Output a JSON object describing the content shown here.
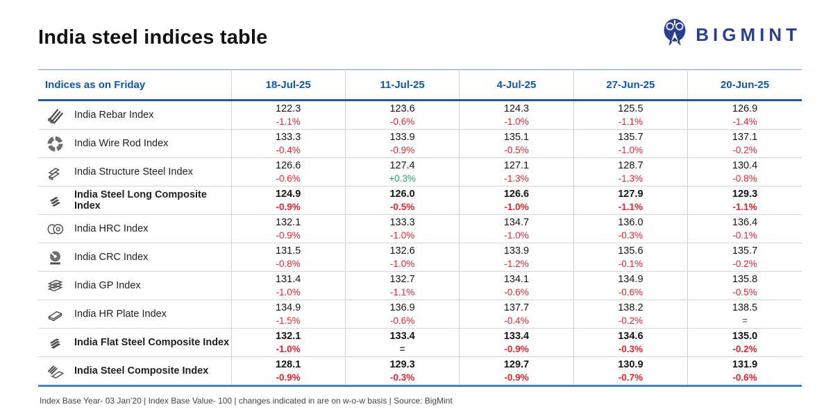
{
  "header": {
    "title": "India steel indices table",
    "logo_text": "BIGMINT"
  },
  "chart_data": {
    "type": "table",
    "title": "India steel indices table",
    "row_header": "Indices as on Friday",
    "columns": [
      "18-Jul-25",
      "11-Jul-25",
      "4-Jul-25",
      "27-Jun-25",
      "20-Jun-25"
    ],
    "rows": [
      {
        "icon": "rebar-icon",
        "label": "India Rebar Index",
        "bold": false,
        "cells": [
          {
            "value": "122.3",
            "change": "-1.1%",
            "direction": "down"
          },
          {
            "value": "123.6",
            "change": "-0.6%",
            "direction": "down"
          },
          {
            "value": "124.3",
            "change": "-1.0%",
            "direction": "down"
          },
          {
            "value": "125.5",
            "change": "-1.1%",
            "direction": "down"
          },
          {
            "value": "126.9",
            "change": "-1.4%",
            "direction": "down"
          }
        ]
      },
      {
        "icon": "wire-rod-icon",
        "label": "India Wire Rod Index",
        "bold": false,
        "cells": [
          {
            "value": "133.3",
            "change": "-0.4%",
            "direction": "down"
          },
          {
            "value": "133.9",
            "change": "-0.9%",
            "direction": "down"
          },
          {
            "value": "135.1",
            "change": "-0.5%",
            "direction": "down"
          },
          {
            "value": "135.7",
            "change": "-1.0%",
            "direction": "down"
          },
          {
            "value": "137.1",
            "change": "-0.2%",
            "direction": "down"
          }
        ]
      },
      {
        "icon": "structure-steel-icon",
        "label": "India Structure Steel Index",
        "bold": false,
        "cells": [
          {
            "value": "126.6",
            "change": "-0.6%",
            "direction": "down"
          },
          {
            "value": "127.4",
            "change": "+0.3%",
            "direction": "up"
          },
          {
            "value": "127.1",
            "change": "-1.3%",
            "direction": "down"
          },
          {
            "value": "128.7",
            "change": "-1.3%",
            "direction": "down"
          },
          {
            "value": "130.4",
            "change": "-0.8%",
            "direction": "down"
          }
        ]
      },
      {
        "icon": "long-composite-icon",
        "label": "India Steel Long Composite Index",
        "bold": true,
        "cells": [
          {
            "value": "124.9",
            "change": "-0.9%",
            "direction": "down"
          },
          {
            "value": "126.0",
            "change": "-0.5%",
            "direction": "down"
          },
          {
            "value": "126.6",
            "change": "-1.0%",
            "direction": "down"
          },
          {
            "value": "127.9",
            "change": "-1.1%",
            "direction": "down"
          },
          {
            "value": "129.3",
            "change": "-1.1%",
            "direction": "down"
          }
        ]
      },
      {
        "icon": "hrc-icon",
        "label": "India HRC Index",
        "bold": false,
        "cells": [
          {
            "value": "132.1",
            "change": "-0.9%",
            "direction": "down"
          },
          {
            "value": "133.3",
            "change": "-1.0%",
            "direction": "down"
          },
          {
            "value": "134.7",
            "change": "-1.0%",
            "direction": "down"
          },
          {
            "value": "136.0",
            "change": "-0.3%",
            "direction": "down"
          },
          {
            "value": "136.4",
            "change": "-0.1%",
            "direction": "down"
          }
        ]
      },
      {
        "icon": "crc-icon",
        "label": "India CRC Index",
        "bold": false,
        "cells": [
          {
            "value": "131.5",
            "change": "-0.8%",
            "direction": "down"
          },
          {
            "value": "132.6",
            "change": "-1.0%",
            "direction": "down"
          },
          {
            "value": "133.9",
            "change": "-1.2%",
            "direction": "down"
          },
          {
            "value": "135.6",
            "change": "-0.1%",
            "direction": "down"
          },
          {
            "value": "135.7",
            "change": "-0.2%",
            "direction": "down"
          }
        ]
      },
      {
        "icon": "gp-icon",
        "label": "India GP Index",
        "bold": false,
        "cells": [
          {
            "value": "131.4",
            "change": "-1.0%",
            "direction": "down"
          },
          {
            "value": "132.7",
            "change": "-1.1%",
            "direction": "down"
          },
          {
            "value": "134.1",
            "change": "-0.6%",
            "direction": "down"
          },
          {
            "value": "134.9",
            "change": "-0.6%",
            "direction": "down"
          },
          {
            "value": "135.8",
            "change": "-0.5%",
            "direction": "down"
          }
        ]
      },
      {
        "icon": "hr-plate-icon",
        "label": "India HR Plate Index",
        "bold": false,
        "cells": [
          {
            "value": "134.9",
            "change": "-1.5%",
            "direction": "down"
          },
          {
            "value": "136.9",
            "change": "-0.6%",
            "direction": "down"
          },
          {
            "value": "137.7",
            "change": "-0.4%",
            "direction": "down"
          },
          {
            "value": "138.2",
            "change": "-0.2%",
            "direction": "down"
          },
          {
            "value": "138.5",
            "change": "=",
            "direction": "flat"
          }
        ]
      },
      {
        "icon": "flat-composite-icon",
        "label": "India Flat Steel Composite Index",
        "bold": true,
        "cells": [
          {
            "value": "132.1",
            "change": "-1.0%",
            "direction": "down"
          },
          {
            "value": "133.4",
            "change": "=",
            "direction": "flat"
          },
          {
            "value": "133.4",
            "change": "-0.9%",
            "direction": "down"
          },
          {
            "value": "134.6",
            "change": "-0.3%",
            "direction": "down"
          },
          {
            "value": "135.0",
            "change": "-0.2%",
            "direction": "down"
          }
        ]
      },
      {
        "icon": "steel-composite-icon",
        "label": "India Steel Composite Index",
        "bold": true,
        "cells": [
          {
            "value": "128.1",
            "change": "-0.9%",
            "direction": "down"
          },
          {
            "value": "129.3",
            "change": "-0.3%",
            "direction": "down"
          },
          {
            "value": "129.7",
            "change": "-0.9%",
            "direction": "down"
          },
          {
            "value": "130.9",
            "change": "-0.7%",
            "direction": "down"
          },
          {
            "value": "131.9",
            "change": "-0.6%",
            "direction": "down"
          }
        ]
      }
    ]
  },
  "footer": {
    "note": "Index Base Year- 03 Jan’20 | Index Base Value- 100 | changes indicated in are on w-o-w basis | Source: BigMint"
  },
  "colors": {
    "accent_blue": "#1155ab",
    "header_rule_blue": "#1a5aa8",
    "bottom_rule_blue": "#4a80c2",
    "negative_red": "#e8232d",
    "positive_green": "#27a35e",
    "flat_gray": "#4a4a4a",
    "logo_navy": "#2a3f8e"
  }
}
